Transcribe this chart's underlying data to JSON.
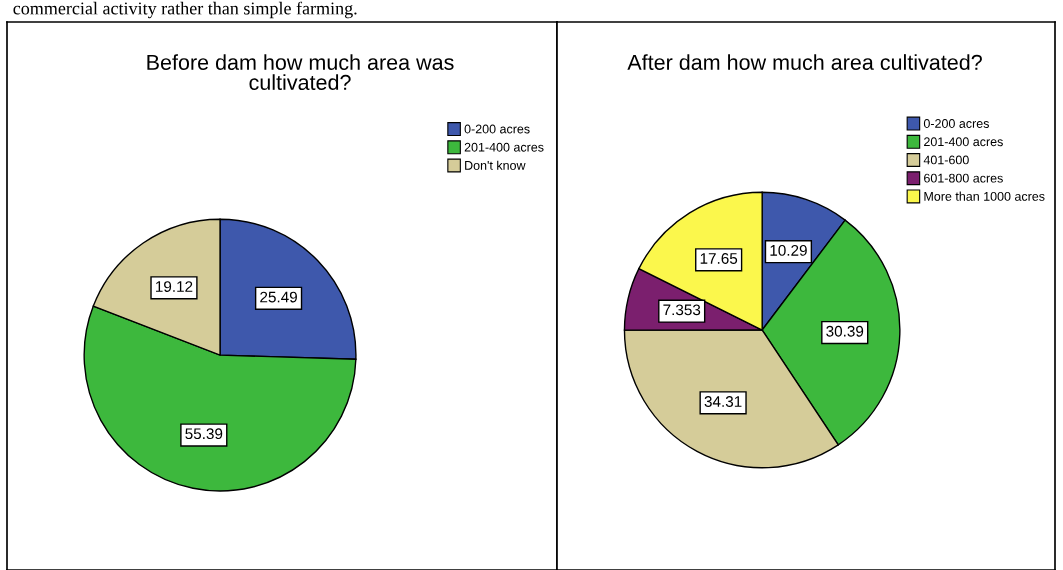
{
  "chart_data": [
    {
      "type": "pie",
      "title": "Before dam how much area was\ncultivated?",
      "categories": [
        "0-200 acres",
        "201-400 acres",
        "Don't know"
      ],
      "values": [
        25.49,
        55.39,
        19.12
      ],
      "colors": [
        "#3e58ac",
        "#3db83d",
        "#d5cc99"
      ],
      "data_labels": true,
      "legend": "top right",
      "annotations": [
        "commercial activity rather than simple farming."
      ]
    },
    {
      "type": "pie",
      "title": "After dam how much area cultivated?",
      "categories": [
        "0-200 acres",
        "201-400 acres",
        "401-600",
        "601-800 acres",
        "More than 1000 acres"
      ],
      "values": [
        10.29,
        30.39,
        34.31,
        7.353,
        17.65
      ],
      "colors": [
        "#3e58ac",
        "#3db83d",
        "#d5cc99",
        "#7b1f6e",
        "#fbf74c"
      ],
      "data_labels": true,
      "legend": "top right"
    }
  ]
}
